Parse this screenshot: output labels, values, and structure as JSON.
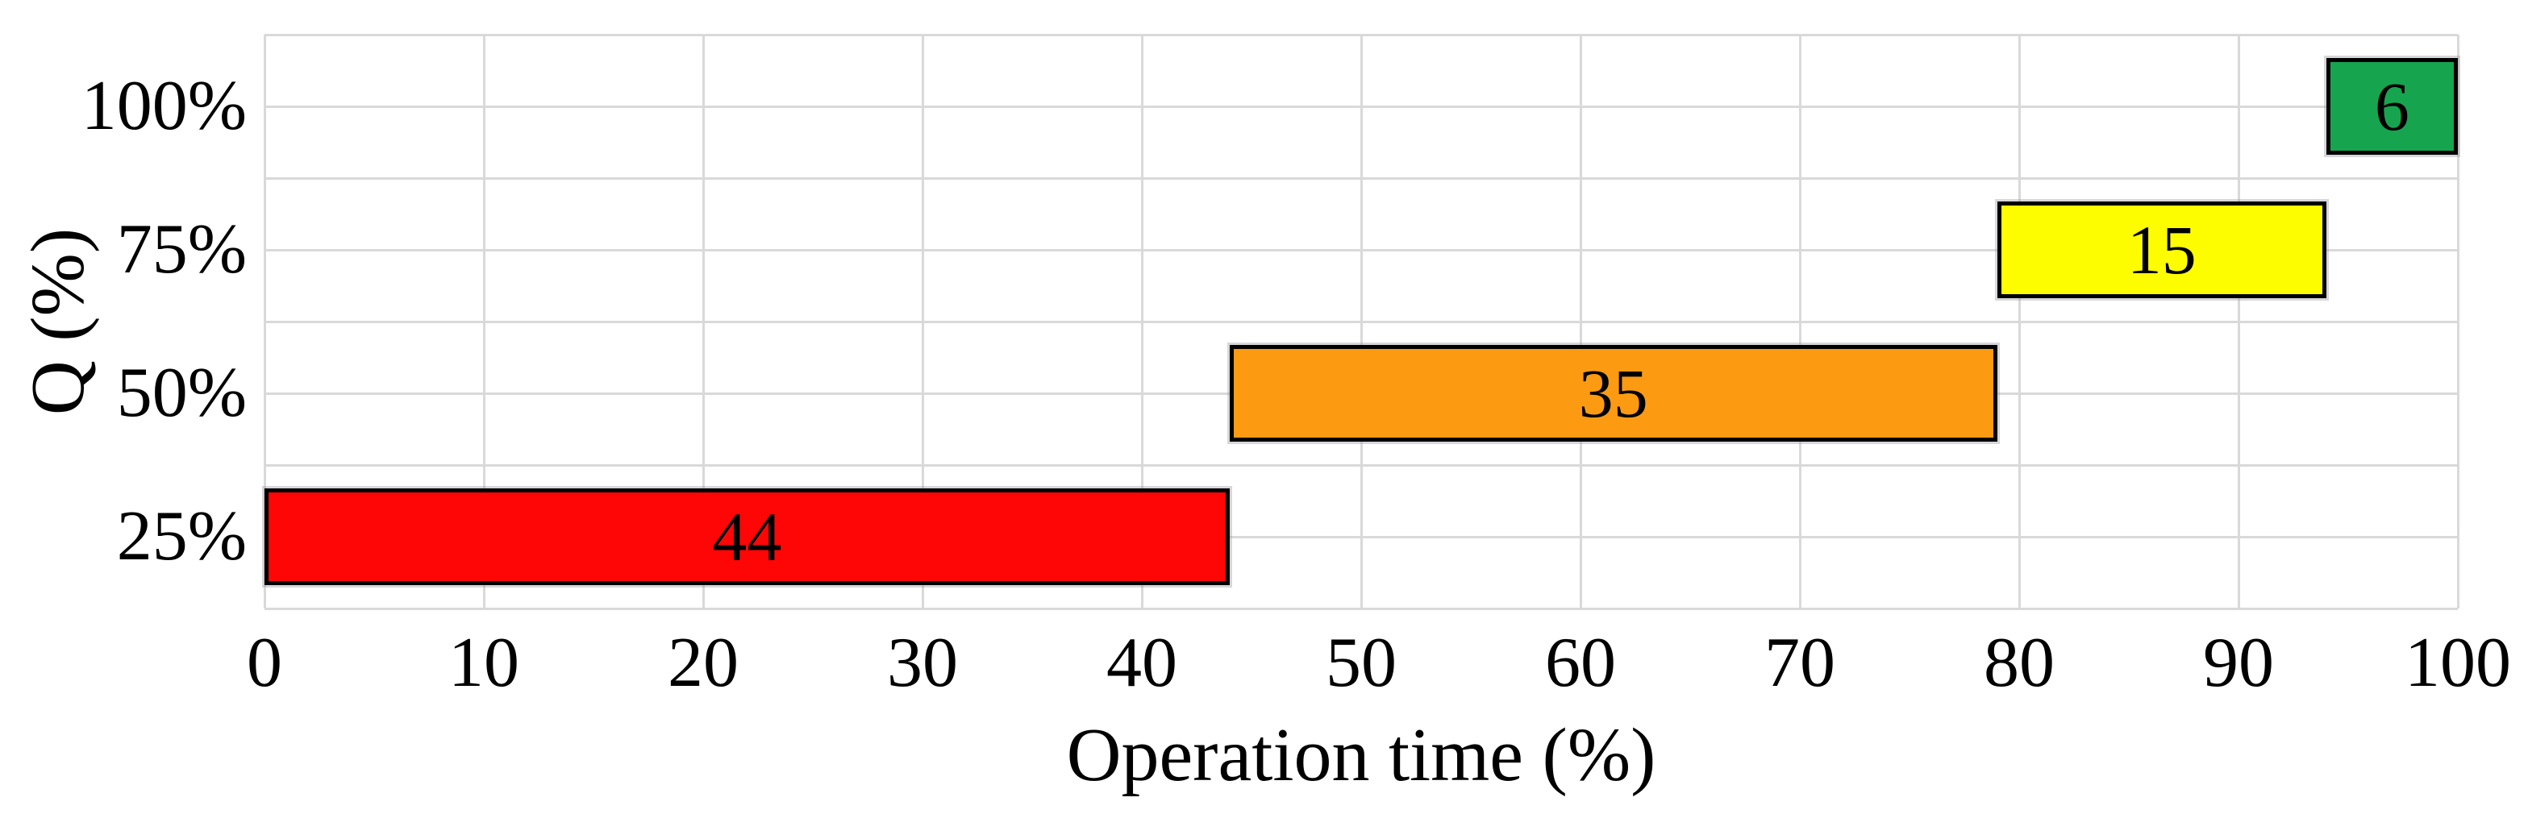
{
  "chart_data": {
    "type": "bar",
    "orientation": "horizontal",
    "title": "",
    "xlabel": "Operation time (%)",
    "ylabel": "Q (%)",
    "xlim": [
      0,
      100
    ],
    "x_ticks": [
      0,
      10,
      20,
      30,
      40,
      50,
      60,
      70,
      80,
      90,
      100
    ],
    "categories_top_to_bottom": [
      "100%",
      "75%",
      "50%",
      "25%"
    ],
    "bars": [
      {
        "category": "25%",
        "start": 0,
        "end": 44,
        "value": 44,
        "label": "44",
        "color": "#fe0606",
        "name": "bar-25pct-red"
      },
      {
        "category": "50%",
        "start": 44,
        "end": 79,
        "value": 35,
        "label": "35",
        "color": "#fc9a12",
        "name": "bar-50pct-orange"
      },
      {
        "category": "75%",
        "start": 79,
        "end": 94,
        "value": 15,
        "label": "15",
        "color": "#fdfd00",
        "name": "bar-75pct-yellow"
      },
      {
        "category": "100%",
        "start": 94,
        "end": 100,
        "value": 6,
        "label": "6",
        "color": "#17a44f",
        "name": "bar-100pct-green"
      }
    ],
    "grid": true,
    "legend": null,
    "colors": {
      "gridline": "#d9d9d9",
      "bar_border": "#000000",
      "text": "#000000",
      "background": "#ffffff"
    }
  }
}
